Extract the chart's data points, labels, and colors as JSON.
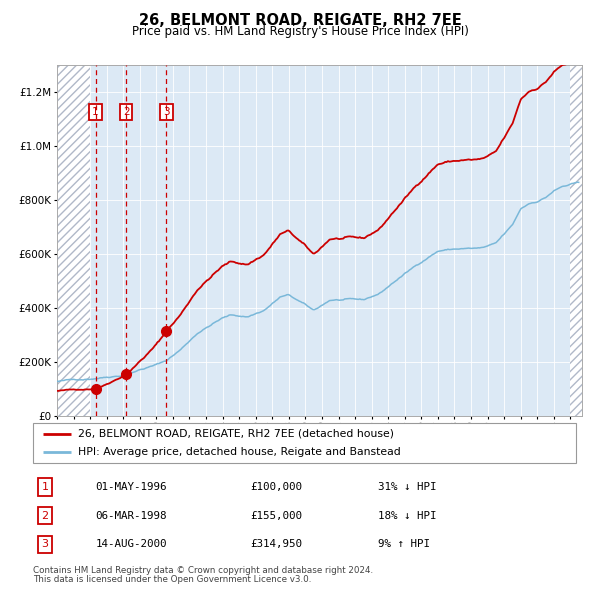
{
  "title": "26, BELMONT ROAD, REIGATE, RH2 7EE",
  "subtitle": "Price paid vs. HM Land Registry's House Price Index (HPI)",
  "legend_line1": "26, BELMONT ROAD, REIGATE, RH2 7EE (detached house)",
  "legend_line2": "HPI: Average price, detached house, Reigate and Banstead",
  "transactions": [
    {
      "num": 1,
      "date": "01-MAY-1996",
      "date_val": 1996.33,
      "price": 100000,
      "label": "31% ↓ HPI"
    },
    {
      "num": 2,
      "date": "06-MAR-1998",
      "date_val": 1998.18,
      "price": 155000,
      "label": "18% ↓ HPI"
    },
    {
      "num": 3,
      "date": "14-AUG-2000",
      "date_val": 2000.6,
      "price": 314950,
      "label": "9% ↑ HPI"
    }
  ],
  "footer_line1": "Contains HM Land Registry data © Crown copyright and database right 2024.",
  "footer_line2": "This data is licensed under the Open Government Licence v3.0.",
  "hpi_line_color": "#7ab8d9",
  "price_line_color": "#cc0000",
  "dot_color": "#cc0000",
  "vline_color": "#cc0000",
  "box_color": "#cc0000",
  "bg_color": "#dce9f5",
  "hatch_color": "#b0b8c8",
  "grid_color": "#ffffff",
  "ylim": [
    0,
    1300000
  ],
  "yticks": [
    0,
    200000,
    400000,
    600000,
    800000,
    1000000,
    1200000
  ],
  "xstart": 1994.0,
  "xend": 2025.7
}
